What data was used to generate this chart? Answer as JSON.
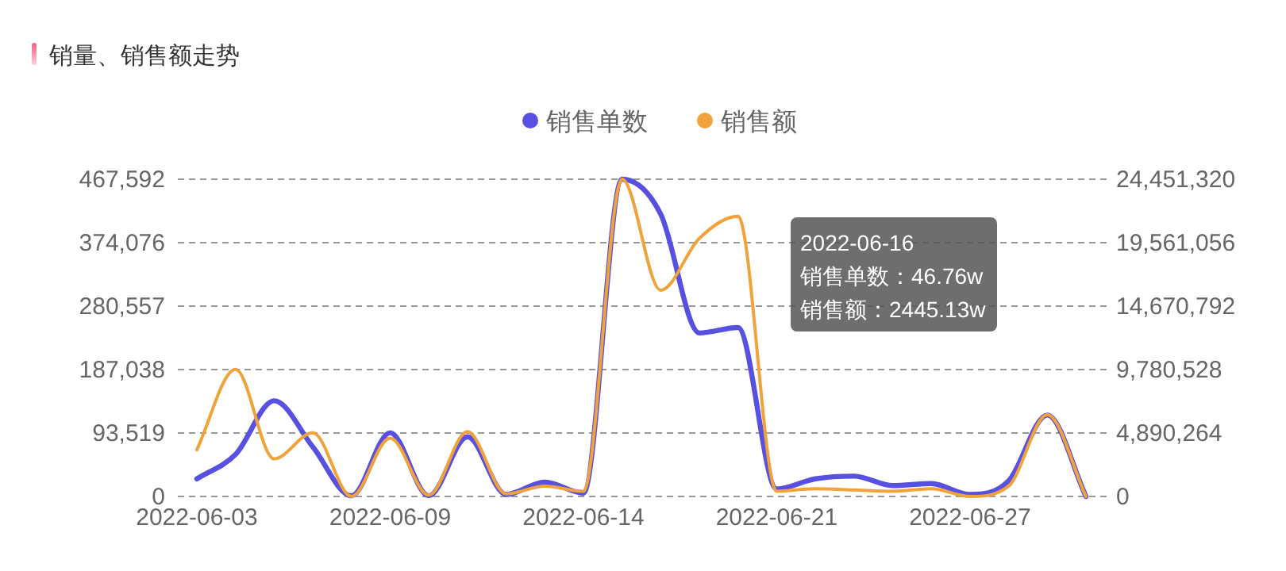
{
  "chart_data": {
    "type": "line",
    "title": "销量、销售额走势",
    "categories": [
      "2022-06-03",
      null,
      null,
      null,
      null,
      "2022-06-09",
      null,
      null,
      null,
      null,
      "2022-06-14",
      null,
      null,
      null,
      null,
      "2022-06-21",
      null,
      null,
      null,
      null,
      "2022-06-27",
      null,
      null,
      null
    ],
    "series": [
      {
        "name": "销售单数",
        "color": "#5750e0",
        "values": [
          26000,
          62000,
          141000,
          73000,
          1000,
          94000,
          1000,
          88000,
          3000,
          21000,
          5000,
          467592,
          416000,
          241000,
          249000,
          11000,
          26000,
          30000,
          16000,
          19000,
          3000,
          23000,
          120000,
          0
        ]
      },
      {
        "name": "销售额",
        "color": "#f0a33a",
        "axis": "y2",
        "values": [
          3600000,
          9800000,
          2900000,
          4900000,
          0,
          4500000,
          100000,
          5000000,
          200000,
          800000,
          400000,
          24451320,
          15900000,
          19900000,
          21600000,
          400000,
          600000,
          500000,
          400000,
          600000,
          0,
          800000,
          6300000,
          0
        ]
      }
    ],
    "ylim": [
      0,
      467592
    ],
    "yticks": [
      0,
      {
        "value": 93519,
        "label": "93,519"
      },
      {
        "value": 187038,
        "label": "187,038"
      },
      {
        "value": 280557,
        "label": "280,557"
      },
      {
        "value": 374076,
        "label": "374,076"
      },
      {
        "value": 467592,
        "label": "467,592"
      }
    ],
    "y2lim": [
      0,
      24451320
    ],
    "y2ticks": [
      0,
      {
        "value": 4890264,
        "label": "4,890,264"
      },
      {
        "value": 9780528,
        "label": "9,780,528"
      },
      {
        "value": 14670792,
        "label": "14,670,792"
      },
      {
        "value": 19561056,
        "label": "19,561,056"
      },
      {
        "value": 24451320,
        "label": "24,451,320"
      }
    ],
    "grid": "y",
    "legend": "top",
    "annotations": [
      "2022-06-16",
      "销售单数：46.76w",
      "销售额：2445.13w"
    ]
  }
}
